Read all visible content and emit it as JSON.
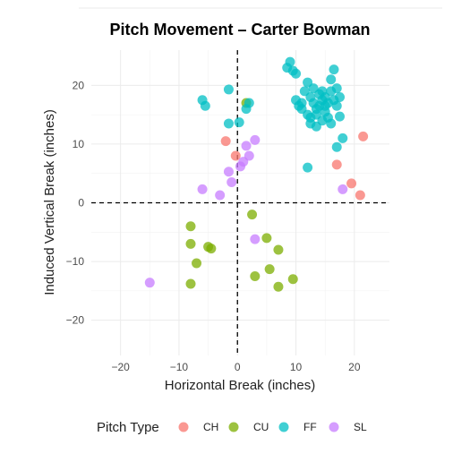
{
  "chart_data": {
    "type": "scatter",
    "title": "Pitch Movement – Carter Bowman",
    "xlabel": "Horizontal Break (inches)",
    "ylabel": "Induced Vertical Break (inches)",
    "xlim": [
      -25,
      26
    ],
    "ylim": [
      -26,
      26
    ],
    "x_ticks": [
      -20,
      -10,
      0,
      10,
      20
    ],
    "y_ticks": [
      -20,
      -10,
      0,
      10,
      20
    ],
    "grid": true,
    "reference_lines": {
      "x": 0,
      "y": 0
    },
    "legend": {
      "title": "Pitch Type",
      "position": "bottom"
    },
    "series": [
      {
        "name": "CH",
        "color": "#F8766D",
        "points": [
          [
            -2,
            10.5
          ],
          [
            -0.3,
            8
          ],
          [
            17,
            6.5
          ],
          [
            19.5,
            3.3
          ],
          [
            21,
            1.3
          ],
          [
            21.5,
            11.3
          ]
        ]
      },
      {
        "name": "CU",
        "color": "#7CAE00",
        "points": [
          [
            1.5,
            17
          ],
          [
            2.5,
            -2
          ],
          [
            -8,
            -4
          ],
          [
            -8,
            -7
          ],
          [
            -5,
            -7.5
          ],
          [
            -4.5,
            -7.8
          ],
          [
            -7,
            -10.3
          ],
          [
            -8,
            -13.8
          ],
          [
            5,
            -6
          ],
          [
            7,
            -8
          ],
          [
            3,
            -12.5
          ],
          [
            5.5,
            -11.3
          ],
          [
            7,
            -14.3
          ],
          [
            9.5,
            -13
          ]
        ]
      },
      {
        "name": "FF",
        "color": "#00BFC4",
        "points": [
          [
            -6,
            17.5
          ],
          [
            -5.5,
            16.5
          ],
          [
            -1.5,
            19.3
          ],
          [
            -1.5,
            13.5
          ],
          [
            0.3,
            13.7
          ],
          [
            1.5,
            16
          ],
          [
            2,
            17
          ],
          [
            8.5,
            23
          ],
          [
            9,
            24
          ],
          [
            9.5,
            22.5
          ],
          [
            10,
            22
          ],
          [
            10,
            17.5
          ],
          [
            10.5,
            16.5
          ],
          [
            11,
            16
          ],
          [
            11,
            17
          ],
          [
            11.5,
            19
          ],
          [
            12,
            20.5
          ],
          [
            12,
            15
          ],
          [
            12.5,
            13.5
          ],
          [
            12.5,
            14.5
          ],
          [
            12.5,
            18
          ],
          [
            13,
            19.5
          ],
          [
            13,
            17
          ],
          [
            13.5,
            16
          ],
          [
            13.5,
            15
          ],
          [
            13.5,
            13
          ],
          [
            14,
            18.5
          ],
          [
            14,
            16.5
          ],
          [
            14.5,
            17.5
          ],
          [
            14.5,
            14
          ],
          [
            14.5,
            19
          ],
          [
            15,
            18
          ],
          [
            15,
            16.5
          ],
          [
            15,
            15.5
          ],
          [
            15.5,
            14.5
          ],
          [
            15.5,
            17
          ],
          [
            16,
            19
          ],
          [
            16,
            13.5
          ],
          [
            16,
            21
          ],
          [
            16.5,
            22.7
          ],
          [
            16.5,
            17.5
          ],
          [
            17,
            16.5
          ],
          [
            17,
            19.5
          ],
          [
            17.5,
            14.7
          ],
          [
            17.5,
            18
          ],
          [
            18,
            11
          ],
          [
            17,
            9.5
          ],
          [
            12,
            6
          ]
        ]
      },
      {
        "name": "SL",
        "color": "#C77CFF",
        "points": [
          [
            3,
            10.7
          ],
          [
            1.5,
            9.7
          ],
          [
            2,
            8
          ],
          [
            1,
            7
          ],
          [
            0.5,
            6.2
          ],
          [
            -1.5,
            5.3
          ],
          [
            -1,
            3.5
          ],
          [
            -6,
            2.3
          ],
          [
            -3,
            1.3
          ],
          [
            3,
            -6.2
          ],
          [
            -15,
            -13.6
          ],
          [
            18,
            2.3
          ]
        ]
      }
    ]
  }
}
